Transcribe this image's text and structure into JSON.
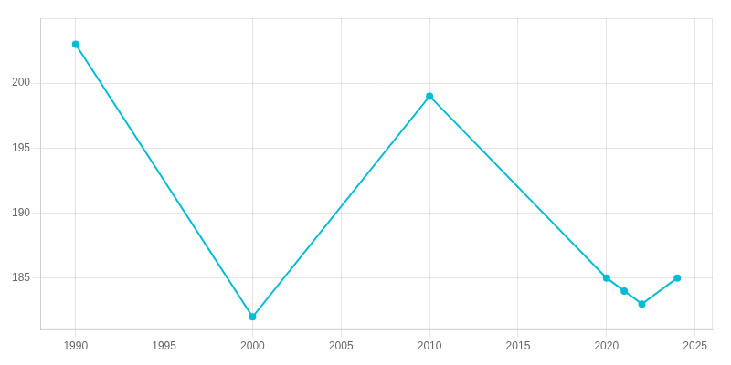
{
  "chart_data": {
    "type": "line",
    "x": [
      1990,
      2000,
      2010,
      2020,
      2021,
      2022,
      2024
    ],
    "values": [
      203,
      182,
      199,
      185,
      184,
      183,
      185
    ],
    "color": "#00bcd4",
    "marker": "circle",
    "xlim": [
      1988,
      2026
    ],
    "ylim": [
      181,
      205
    ],
    "xticks": [
      1990,
      1995,
      2000,
      2005,
      2010,
      2015,
      2020,
      2025
    ],
    "yticks": [
      185,
      190,
      195,
      200
    ],
    "grid": true
  }
}
